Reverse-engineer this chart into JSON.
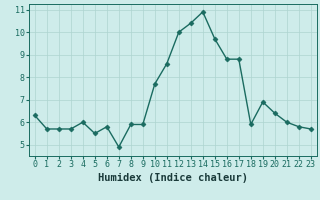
{
  "x": [
    0,
    1,
    2,
    3,
    4,
    5,
    6,
    7,
    8,
    9,
    10,
    11,
    12,
    13,
    14,
    15,
    16,
    17,
    18,
    19,
    20,
    21,
    22,
    23
  ],
  "y": [
    6.3,
    5.7,
    5.7,
    5.7,
    6.0,
    5.5,
    5.8,
    4.9,
    5.9,
    5.9,
    7.7,
    8.6,
    10.0,
    10.4,
    10.9,
    9.7,
    8.8,
    8.8,
    5.9,
    6.9,
    6.4,
    6.0,
    5.8,
    5.7
  ],
  "line_color": "#1a6b60",
  "marker": "D",
  "markersize": 2.5,
  "linewidth": 1.0,
  "bg_color": "#ceecea",
  "grid_color": "#aed4d0",
  "xlabel": "Humidex (Indice chaleur)",
  "xlim": [
    -0.5,
    23.5
  ],
  "ylim": [
    4.5,
    11.25
  ],
  "yticks": [
    5,
    6,
    7,
    8,
    9,
    10,
    11
  ],
  "xticks": [
    0,
    1,
    2,
    3,
    4,
    5,
    6,
    7,
    8,
    9,
    10,
    11,
    12,
    13,
    14,
    15,
    16,
    17,
    18,
    19,
    20,
    21,
    22,
    23
  ],
  "xtick_labels": [
    "0",
    "1",
    "2",
    "3",
    "4",
    "5",
    "6",
    "7",
    "8",
    "9",
    "10",
    "11",
    "12",
    "13",
    "14",
    "15",
    "16",
    "17",
    "18",
    "19",
    "20",
    "21",
    "22",
    "23"
  ],
  "xlabel_fontsize": 7.5,
  "tick_fontsize": 6.0,
  "tick_color": "#1a6b60",
  "spine_color": "#1a6b60",
  "xlabel_color": "#1a3a3a",
  "xlabel_fontfamily": "monospace"
}
